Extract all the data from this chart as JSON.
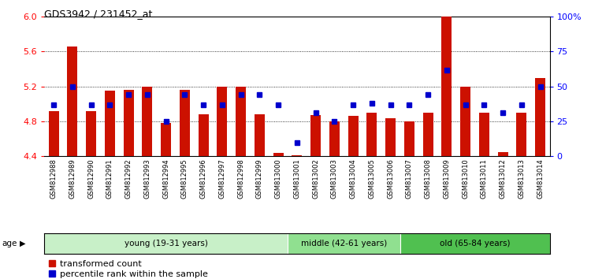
{
  "title": "GDS3942 / 231452_at",
  "samples": [
    "GSM812988",
    "GSM812989",
    "GSM812990",
    "GSM812991",
    "GSM812992",
    "GSM812993",
    "GSM812994",
    "GSM812995",
    "GSM812996",
    "GSM812997",
    "GSM812998",
    "GSM812999",
    "GSM813000",
    "GSM813001",
    "GSM813002",
    "GSM813003",
    "GSM813004",
    "GSM813005",
    "GSM813006",
    "GSM813007",
    "GSM813008",
    "GSM813009",
    "GSM813010",
    "GSM813011",
    "GSM813012",
    "GSM813013",
    "GSM813014"
  ],
  "red_values": [
    4.92,
    5.66,
    4.92,
    5.15,
    5.16,
    5.2,
    4.78,
    5.16,
    4.88,
    5.2,
    5.2,
    4.88,
    4.44,
    4.41,
    4.87,
    4.8,
    4.86,
    4.9,
    4.84,
    4.8,
    4.9,
    6.0,
    5.2,
    4.9,
    4.45,
    4.9,
    5.3
  ],
  "blue_percentile": [
    37,
    50,
    37,
    37,
    44,
    44,
    25,
    44,
    37,
    37,
    44,
    44,
    37,
    10,
    31,
    25,
    37,
    38,
    37,
    37,
    44,
    62,
    37,
    37,
    31,
    37,
    50
  ],
  "groups": [
    {
      "label": "young (19-31 years)",
      "start": 0,
      "end": 13,
      "color": "#c8f0c8"
    },
    {
      "label": "middle (42-61 years)",
      "start": 13,
      "end": 19,
      "color": "#90e090"
    },
    {
      "label": "old (65-84 years)",
      "start": 19,
      "end": 27,
      "color": "#50c050"
    }
  ],
  "ylim_left": [
    4.4,
    6.0
  ],
  "ylim_right": [
    0,
    100
  ],
  "yticks_left": [
    4.4,
    4.8,
    5.2,
    5.6,
    6.0
  ],
  "yticks_right": [
    0,
    25,
    50,
    75,
    100
  ],
  "bar_color": "#cc1100",
  "dot_color": "#0000cc",
  "bar_bottom": 4.4,
  "legend_red": "transformed count",
  "legend_blue": "percentile rank within the sample"
}
